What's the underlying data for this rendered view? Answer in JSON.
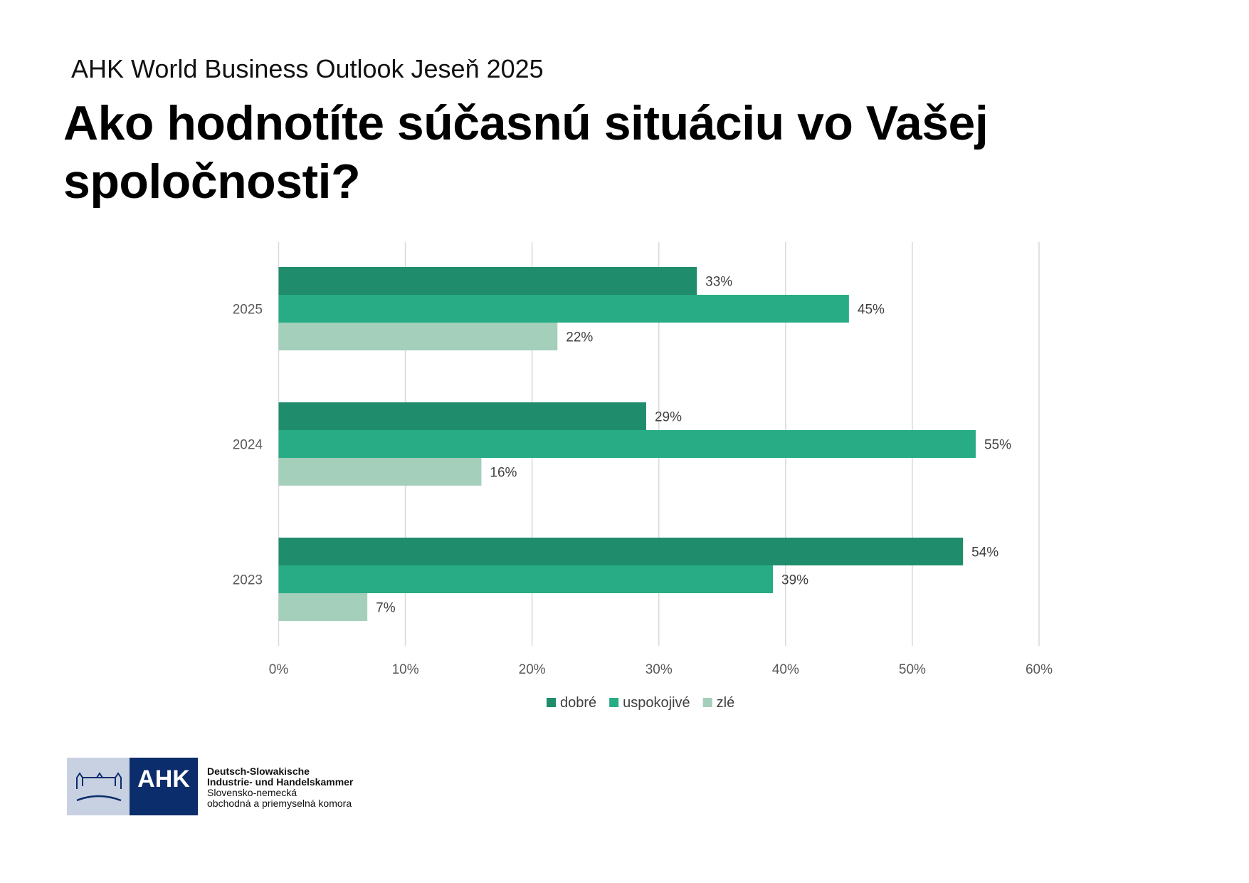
{
  "subtitle": "AHK World Business Outlook Jeseň 2025",
  "title": "Ako hodnotíte súčasnú situáciu vo Vašej spoločnosti?",
  "chart_data": {
    "type": "bar",
    "orientation": "horizontal",
    "categories": [
      "2025",
      "2024",
      "2023"
    ],
    "series": [
      {
        "name": "dobré",
        "values": [
          33,
          29,
          54
        ],
        "color": "#1f8c6c"
      },
      {
        "name": "uspokojivé",
        "values": [
          45,
          55,
          39
        ],
        "color": "#28ac85"
      },
      {
        "name": "zlé",
        "values": [
          22,
          16,
          7
        ],
        "color": "#a3cfbb"
      }
    ],
    "data_labels": [
      [
        "33%",
        "29%",
        "54%"
      ],
      [
        "45%",
        "55%",
        "39%"
      ],
      [
        "22%",
        "16%",
        "7%"
      ]
    ],
    "xlim": [
      0,
      60
    ],
    "xticks": [
      "0%",
      "10%",
      "20%",
      "30%",
      "40%",
      "50%",
      "60%"
    ],
    "grid": true,
    "legend": "bottom"
  },
  "logo": {
    "mark": "AHK",
    "line1": "Deutsch-Slowakische",
    "line2": "Industrie- und Handelskammer",
    "line3": "Slovensko-nemecká",
    "line4": "obchodná a priemyselná komora"
  }
}
